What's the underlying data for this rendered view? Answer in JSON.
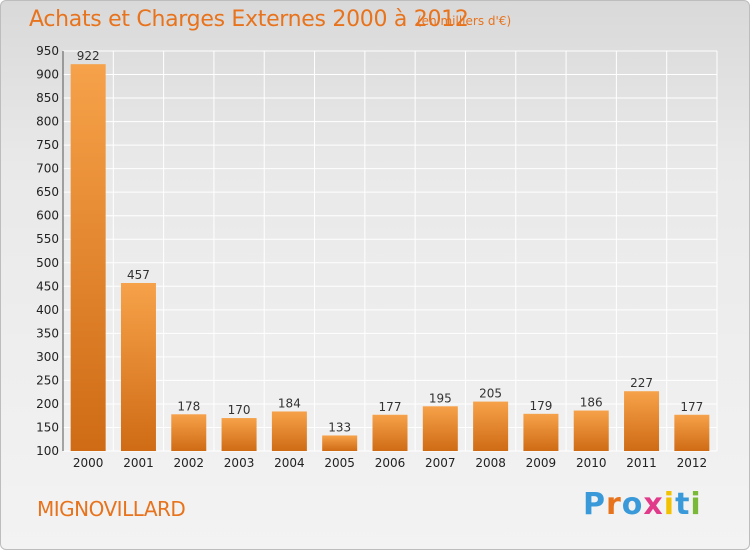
{
  "title": "Achats et Charges Externes 2000 à 2012",
  "subtitle": "(en milliers d'€)",
  "commune": "MIGNOVILLARD",
  "logo": {
    "letters": [
      "P",
      "r",
      "o",
      "x",
      "i",
      "t",
      "i"
    ],
    "colors": [
      "#3a9ad9",
      "#e8731d",
      "#3a9ad9",
      "#e23a8a",
      "#f2c200",
      "#3a9ad9",
      "#7ab83a"
    ]
  },
  "colors": {
    "bar_top": "#f6a24a",
    "bar_bottom": "#cf6b15",
    "text": "#e8731d"
  },
  "chart_data": {
    "type": "bar",
    "categories": [
      "2000",
      "2001",
      "2002",
      "2003",
      "2004",
      "2005",
      "2006",
      "2007",
      "2008",
      "2009",
      "2010",
      "2011",
      "2012"
    ],
    "values": [
      922,
      457,
      178,
      170,
      184,
      133,
      177,
      195,
      205,
      179,
      186,
      227,
      177
    ],
    "ylim": [
      100,
      950
    ],
    "yticks": [
      100,
      150,
      200,
      250,
      300,
      350,
      400,
      450,
      500,
      550,
      600,
      650,
      700,
      750,
      800,
      850,
      900,
      950
    ],
    "grid": true,
    "title": "Achats et Charges Externes 2000 à 2012",
    "xlabel": "",
    "ylabel": ""
  }
}
